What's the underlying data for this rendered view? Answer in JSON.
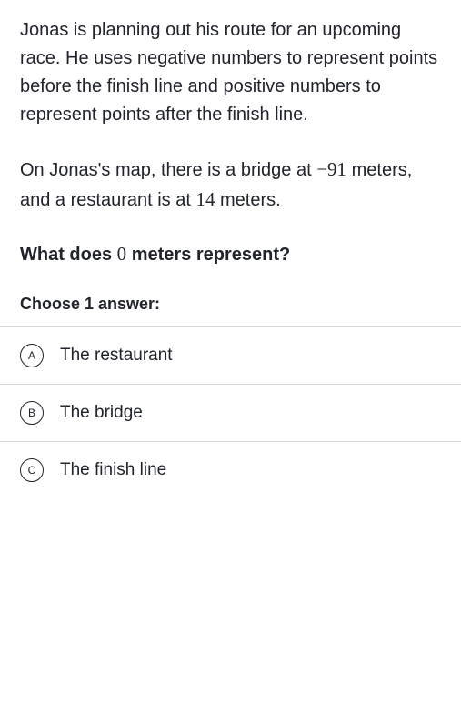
{
  "paragraphs": {
    "p1_part1": "Jonas is planning out his route for an upcoming race. He uses negative numbers to represent points before the finish line and positive numbers to represent points after the finish line.",
    "p2_part1": "On Jonas's map, there is a bridge at ",
    "p2_math1": "−91",
    "p2_part2": " meters, and a restaurant is at ",
    "p2_math2": "14",
    "p2_part3": " meters."
  },
  "question": {
    "part1": "What does ",
    "math1": "0",
    "part2": " meters represent?"
  },
  "choose_label": "Choose 1 answer:",
  "answers": [
    {
      "letter": "A",
      "text": "The restaurant"
    },
    {
      "letter": "B",
      "text": "The bridge"
    },
    {
      "letter": "C",
      "text": "The finish line"
    }
  ],
  "colors": {
    "text": "#21242c",
    "border": "#d6d8da",
    "background": "#ffffff"
  }
}
